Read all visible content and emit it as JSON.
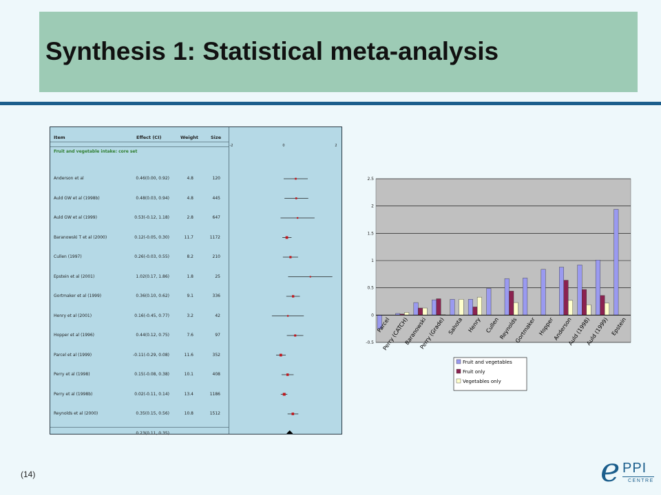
{
  "slide": {
    "title": "Synthesis 1: Statistical meta-analysis",
    "footer_number": "(14)",
    "logo": {
      "e": "e",
      "ppi": "PPI",
      "centre": "CENTRE"
    }
  },
  "colors": {
    "title_bg": "#9dcbb5",
    "rule": "#1b5e8c",
    "forest_bg": "#b5d9e6",
    "marker": "#c0161c",
    "fv": "#9a9af0",
    "fruit": "#8b2250",
    "veg": "#ffffcc",
    "plot_bg": "#c0c0c0"
  },
  "chart_data": [
    {
      "type": "forest",
      "headers": {
        "item": "Item",
        "effect": "Effect (CI)",
        "weight": "Weight",
        "size": "Size"
      },
      "group_label": "Fruit and vegetable intake: core set",
      "x_ticks": [
        "-2",
        "0",
        "2"
      ],
      "xlim": [
        -2,
        2
      ],
      "rows": [
        {
          "study": "Anderson et al",
          "effect_text": "0.46(0.00, 0.92)",
          "weight": "4.8",
          "size": "120",
          "est": 0.46,
          "lo": 0.0,
          "hi": 0.92
        },
        {
          "study": "Auld GW et al (1998b)",
          "effect_text": "0.48(0.03, 0.94)",
          "weight": "4.8",
          "size": "445",
          "est": 0.48,
          "lo": 0.03,
          "hi": 0.94
        },
        {
          "study": "Auld GW et al (1999)",
          "effect_text": "0.53(-0.12, 1.18)",
          "weight": "2.8",
          "size": "647",
          "est": 0.53,
          "lo": -0.12,
          "hi": 1.18
        },
        {
          "study": "Baranowski T et al (2000)",
          "effect_text": "0.12(-0.05, 0.30)",
          "weight": "11.7",
          "size": "1172",
          "est": 0.12,
          "lo": -0.05,
          "hi": 0.3
        },
        {
          "study": "Cullen (1997)",
          "effect_text": "0.26(-0.03, 0.55)",
          "weight": "8.2",
          "size": "210",
          "est": 0.26,
          "lo": -0.03,
          "hi": 0.55
        },
        {
          "study": "Epstein et al (2001)",
          "effect_text": "1.02(0.17, 1.86)",
          "weight": "1.8",
          "size": "25",
          "est": 1.02,
          "lo": 0.17,
          "hi": 1.86
        },
        {
          "study": "Gortmaker et al (1999)",
          "effect_text": "0.36(0.10, 0.62)",
          "weight": "9.1",
          "size": "336",
          "est": 0.36,
          "lo": 0.1,
          "hi": 0.62
        },
        {
          "study": "Henry et al (2001)",
          "effect_text": "0.16(-0.45, 0.77)",
          "weight": "3.2",
          "size": "42",
          "est": 0.16,
          "lo": -0.45,
          "hi": 0.77
        },
        {
          "study": "Hopper et al (1996)",
          "effect_text": "0.44(0.12, 0.75)",
          "weight": "7.6",
          "size": "97",
          "est": 0.44,
          "lo": 0.12,
          "hi": 0.75
        },
        {
          "study": "Parcel et al (1999)",
          "effect_text": "-0.11(-0.29, 0.08)",
          "weight": "11.6",
          "size": "352",
          "est": -0.11,
          "lo": -0.29,
          "hi": 0.08
        },
        {
          "study": "Perry et al (1998)",
          "effect_text": "0.15(-0.08, 0.38)",
          "weight": "10.1",
          "size": "408",
          "est": 0.15,
          "lo": -0.08,
          "hi": 0.38
        },
        {
          "study": "Perry et al (1998b)",
          "effect_text": "0.02(-0.11, 0.14)",
          "weight": "13.4",
          "size": "1186",
          "est": 0.02,
          "lo": -0.11,
          "hi": 0.14
        },
        {
          "study": "Reynolds et al (2000)",
          "effect_text": "0.35(0.15, 0.56)",
          "weight": "10.8",
          "size": "1512",
          "est": 0.35,
          "lo": 0.15,
          "hi": 0.56
        }
      ],
      "pooled": {
        "effect_text": "0.23(0.11, 0.35)",
        "est": 0.23,
        "lo": 0.11,
        "hi": 0.35
      }
    },
    {
      "type": "bar",
      "categories": [
        "Parcel",
        "Perry (CATCH)",
        "Baranowski",
        "Perry (Grade)",
        "Sahota",
        "Henry",
        "Cullen",
        "Reynolds",
        "Gortmaker",
        "Hopper",
        "Anderson",
        "Auld (1998)",
        "Auld (1999)",
        "Epstein"
      ],
      "ylim": [
        -0.5,
        2.5
      ],
      "y_ticks": [
        "2.5",
        "2",
        "1.5",
        "1",
        "0.5",
        "0",
        "-0.5"
      ],
      "y_tick_values": [
        2.5,
        2,
        1.5,
        1,
        0.5,
        0,
        -0.5
      ],
      "grid": true,
      "legend_position": "bottom",
      "series": [
        {
          "name": "Fruit and vegetables",
          "values": [
            -0.25,
            0.03,
            0.23,
            0.28,
            0.29,
            0.29,
            0.49,
            0.67,
            0.68,
            0.84,
            0.88,
            0.92,
            1.01,
            1.94
          ]
        },
        {
          "name": "Fruit only",
          "values": [
            null,
            0.02,
            0.13,
            0.3,
            null,
            0.15,
            null,
            0.44,
            null,
            null,
            0.64,
            0.47,
            0.36,
            null
          ]
        },
        {
          "name": "Vegetables only",
          "values": [
            null,
            0.05,
            0.13,
            0.01,
            0.29,
            0.33,
            null,
            0.23,
            null,
            null,
            0.27,
            0.19,
            0.22,
            null
          ]
        }
      ]
    }
  ]
}
